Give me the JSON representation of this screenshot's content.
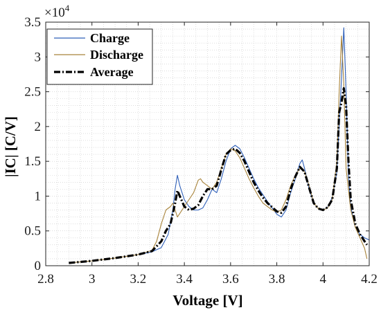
{
  "chart_data": {
    "type": "line",
    "xlabel": "Voltage [V]",
    "ylabel": "|IC| [C/V]",
    "exponent_base": "×10",
    "exponent_power": "4",
    "xlim": [
      2.8,
      4.2
    ],
    "ylim": [
      0,
      35000
    ],
    "xticks": [
      "2.8",
      "3",
      "3.2",
      "3.4",
      "3.6",
      "3.8",
      "4",
      "4.2"
    ],
    "yticks": [
      "0",
      "0.5",
      "1",
      "1.5",
      "2",
      "2.5",
      "3",
      "3.5"
    ],
    "grid": "minor-dotted",
    "legend_position": "top-left",
    "series": [
      {
        "name": "Charge",
        "color": "#2e5fb8",
        "style": "solid",
        "x": [
          2.9,
          3.0,
          3.1,
          3.2,
          3.26,
          3.3,
          3.33,
          3.35,
          3.36,
          3.37,
          3.38,
          3.4,
          3.42,
          3.44,
          3.46,
          3.48,
          3.5,
          3.52,
          3.54,
          3.56,
          3.58,
          3.6,
          3.62,
          3.64,
          3.66,
          3.68,
          3.7,
          3.72,
          3.74,
          3.76,
          3.78,
          3.8,
          3.82,
          3.84,
          3.86,
          3.88,
          3.9,
          3.91,
          3.92,
          3.94,
          3.96,
          3.98,
          4.0,
          4.02,
          4.04,
          4.06,
          4.08,
          4.09,
          4.1,
          4.11,
          4.12,
          4.14,
          4.16,
          4.18,
          4.2
        ],
        "y": [
          400,
          700,
          1100,
          1600,
          2000,
          2600,
          4500,
          8000,
          11000,
          13000,
          11500,
          9500,
          8500,
          8000,
          8000,
          8300,
          9500,
          11000,
          10500,
          12500,
          15000,
          16800,
          17300,
          16800,
          15500,
          14000,
          12500,
          11200,
          10200,
          9200,
          8300,
          7400,
          7000,
          8000,
          10500,
          12500,
          14700,
          15200,
          14000,
          11000,
          9000,
          8200,
          8000,
          8400,
          9800,
          13500,
          27000,
          34200,
          25000,
          13000,
          8500,
          5500,
          4500,
          4000,
          3700
        ]
      },
      {
        "name": "Discharge",
        "color": "#a8833a",
        "style": "solid",
        "x": [
          2.9,
          3.0,
          3.1,
          3.2,
          3.26,
          3.28,
          3.3,
          3.32,
          3.34,
          3.35,
          3.36,
          3.37,
          3.38,
          3.4,
          3.42,
          3.44,
          3.46,
          3.47,
          3.48,
          3.5,
          3.52,
          3.54,
          3.56,
          3.58,
          3.6,
          3.62,
          3.64,
          3.66,
          3.68,
          3.7,
          3.72,
          3.74,
          3.76,
          3.78,
          3.8,
          3.82,
          3.84,
          3.86,
          3.88,
          3.9,
          3.92,
          3.94,
          3.96,
          3.98,
          4.0,
          4.02,
          4.04,
          4.06,
          4.07,
          4.08,
          4.09,
          4.1,
          4.12,
          4.14,
          4.16,
          4.18,
          4.19
        ],
        "y": [
          400,
          700,
          1100,
          1600,
          2200,
          3500,
          6000,
          8000,
          8500,
          9000,
          8000,
          7000,
          7500,
          8500,
          9500,
          10500,
          12300,
          12500,
          12000,
          11500,
          11000,
          12000,
          14000,
          16000,
          16800,
          16500,
          15500,
          14000,
          12500,
          11200,
          10000,
          9000,
          8500,
          8000,
          7700,
          8000,
          9500,
          11500,
          13000,
          14000,
          13500,
          11500,
          9000,
          8200,
          8000,
          8300,
          9500,
          15000,
          25000,
          33000,
          26000,
          14000,
          8000,
          5500,
          4000,
          2500,
          1000
        ]
      },
      {
        "name": "Average",
        "color": "#000000",
        "style": "dashdot",
        "x": [
          2.9,
          3.0,
          3.1,
          3.2,
          3.26,
          3.3,
          3.32,
          3.34,
          3.35,
          3.36,
          3.37,
          3.38,
          3.4,
          3.42,
          3.44,
          3.46,
          3.48,
          3.5,
          3.52,
          3.54,
          3.56,
          3.58,
          3.6,
          3.62,
          3.64,
          3.66,
          3.68,
          3.7,
          3.72,
          3.74,
          3.76,
          3.78,
          3.8,
          3.82,
          3.84,
          3.86,
          3.88,
          3.9,
          3.92,
          3.94,
          3.96,
          3.98,
          4.0,
          4.02,
          4.04,
          4.06,
          4.07,
          4.08,
          4.09,
          4.1,
          4.11,
          4.12,
          4.14,
          4.16,
          4.18,
          4.19
        ],
        "y": [
          400,
          700,
          1100,
          1600,
          2100,
          3500,
          5000,
          6000,
          7500,
          9000,
          10800,
          10000,
          8500,
          8000,
          8200,
          8700,
          10000,
          11000,
          11000,
          11500,
          13800,
          16000,
          16600,
          16800,
          16200,
          15000,
          13500,
          12000,
          10800,
          9800,
          9000,
          8400,
          7800,
          7600,
          8500,
          11000,
          12800,
          14200,
          13500,
          11200,
          9000,
          8200,
          8000,
          8400,
          9500,
          14000,
          22000,
          23500,
          25500,
          23000,
          15000,
          9500,
          6000,
          4500,
          3500,
          3000
        ]
      }
    ]
  }
}
